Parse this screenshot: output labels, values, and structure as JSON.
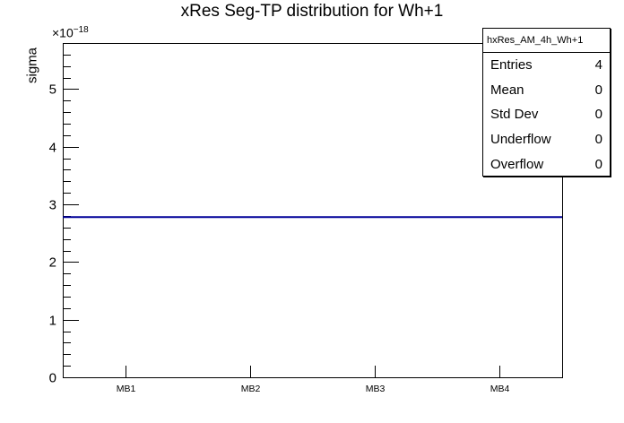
{
  "chart_data": {
    "type": "line",
    "title": "xRes Seg-TP distribution for Wh+1",
    "categories": [
      "MB1",
      "MB2",
      "MB3",
      "MB4"
    ],
    "values": [
      2.78e-18,
      2.78e-18,
      2.78e-18,
      2.78e-18
    ],
    "xlabel": "",
    "ylabel": "sigma",
    "y_scale": 1e-18,
    "y_scale_label": "×10⁻¹⁸",
    "ylim": [
      0,
      5.8e-18
    ],
    "y_major_step": 1e-18,
    "y_minor_step": 2e-19,
    "y_major_tick_labels": [
      "0",
      "1",
      "2",
      "3",
      "4",
      "5"
    ],
    "grid": false,
    "legend": "none",
    "line_color": "#000099"
  },
  "y_axis": {
    "scale_base": "×10",
    "scale_exp": "−18"
  },
  "stats_box": {
    "title": "hxRes_AM_4h_Wh+1",
    "rows": [
      {
        "label": "Entries",
        "value": "4"
      },
      {
        "label": "Mean",
        "value": "0"
      },
      {
        "label": "Std Dev",
        "value": "0"
      },
      {
        "label": "Underflow",
        "value": "0"
      },
      {
        "label": "Overflow",
        "value": "0"
      }
    ]
  },
  "colors": {
    "line": "#000099",
    "axis": "#000000",
    "background": "#ffffff"
  }
}
